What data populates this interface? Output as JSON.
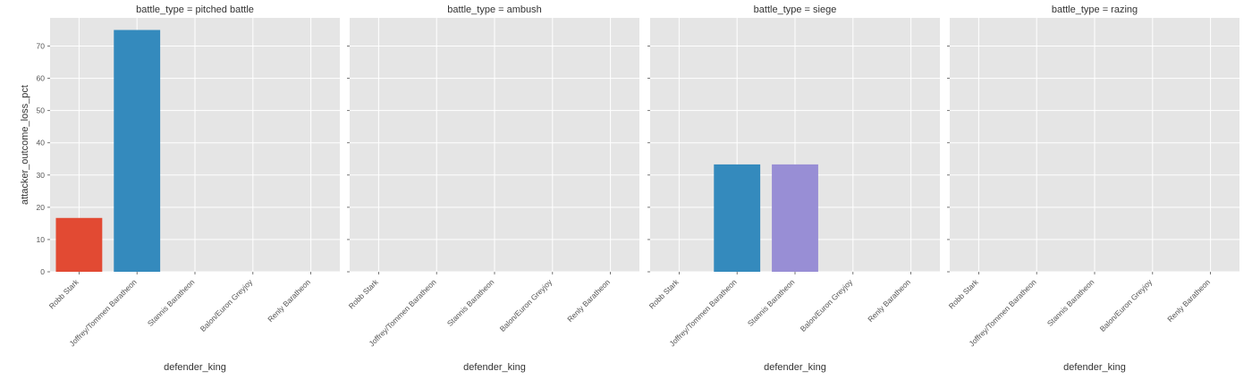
{
  "chart_data": {
    "type": "bar",
    "facet_variable": "battle_type",
    "categories": [
      "Robb Stark",
      "Joffrey/Tommen Baratheon",
      "Stannis Baratheon",
      "Balon/Euron Greyjoy",
      "Renly Baratheon"
    ],
    "category_colors": [
      "#E24A33",
      "#348ABD",
      "#988ED5",
      "#777777",
      "#FBC15E"
    ],
    "panels": [
      {
        "title": "battle_type = pitched battle",
        "values": [
          16.7,
          75.0,
          0,
          0,
          0
        ]
      },
      {
        "title": "battle_type = ambush",
        "values": [
          0,
          0,
          0,
          0,
          0
        ]
      },
      {
        "title": "battle_type = siege",
        "values": [
          0,
          33.3,
          33.3,
          0,
          0
        ]
      },
      {
        "title": "battle_type = razing",
        "values": [
          0,
          0,
          0,
          0,
          0
        ]
      }
    ],
    "xlabel": "defender_king",
    "ylabel": "attacker_outcome_loss_pct",
    "ylim": [
      0,
      78.75
    ],
    "yticks": [
      0,
      10,
      20,
      30,
      40,
      50,
      60,
      70
    ],
    "grid": true,
    "background_color": "#E5E5E5",
    "grid_color": "#FFFFFF"
  }
}
